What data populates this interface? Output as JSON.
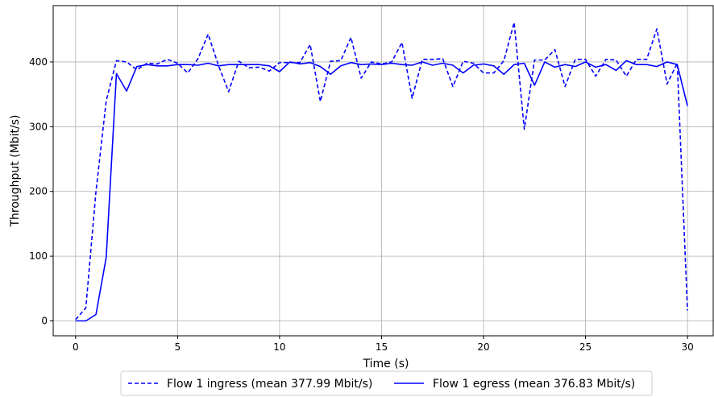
{
  "chart_data": {
    "type": "line",
    "title": "",
    "xlabel": "Time (s)",
    "ylabel": "Throughput (Mbit/s)",
    "xlim": [
      -1.1,
      31.3
    ],
    "ylim": [
      -23,
      487
    ],
    "xticks": [
      0,
      5,
      10,
      15,
      20,
      25,
      30
    ],
    "yticks": [
      0,
      100,
      200,
      300,
      400
    ],
    "grid": true,
    "legend_position": "bottom-center",
    "series": [
      {
        "name": "Flow 1 ingress (mean 377.99 Mbit/s)",
        "style": "dashed",
        "color": "#0000ff",
        "x": [
          0,
          0.5,
          1,
          1.5,
          2,
          2.5,
          3,
          3.5,
          4,
          4.5,
          5,
          5.5,
          6,
          6.5,
          7,
          7.5,
          8,
          8.5,
          9,
          9.5,
          10,
          10.5,
          11,
          11.5,
          12,
          12.5,
          13,
          13.5,
          14,
          14.5,
          15,
          15.5,
          16,
          16.5,
          17,
          17.5,
          18,
          18.5,
          19,
          19.5,
          20,
          20.5,
          21,
          21.5,
          22,
          22.5,
          23,
          23.5,
          24,
          24.5,
          25,
          25.5,
          26,
          26.5,
          27,
          27.5,
          28,
          28.5,
          29,
          29.5,
          30
        ],
        "y": [
          2,
          20,
          200,
          340,
          402,
          400,
          388,
          398,
          397,
          404,
          398,
          383,
          405,
          443,
          395,
          354,
          401,
          391,
          392,
          386,
          399,
          399,
          399,
          427,
          339,
          401,
          402,
          438,
          375,
          400,
          397,
          400,
          430,
          344,
          404,
          404,
          405,
          362,
          401,
          398,
          383,
          383,
          402,
          461,
          296,
          403,
          403,
          419,
          362,
          404,
          404,
          378,
          404,
          403,
          378,
          404,
          404,
          451,
          366,
          398,
          16
        ]
      },
      {
        "name": "Flow 1 egress (mean 376.83 Mbit/s)",
        "style": "solid",
        "color": "#0000ff",
        "x": [
          0,
          0.5,
          1,
          1.5,
          2,
          2.5,
          3,
          3.5,
          4,
          4.5,
          5,
          5.5,
          6,
          6.5,
          7,
          7.5,
          8,
          8.5,
          9,
          9.5,
          10,
          10.5,
          11,
          11.5,
          12,
          12.5,
          13,
          13.5,
          14,
          14.5,
          15,
          15.5,
          16,
          16.5,
          17,
          17.5,
          18,
          18.5,
          19,
          19.5,
          20,
          20.5,
          21,
          21.5,
          22,
          22.5,
          23,
          23.5,
          24,
          24.5,
          25,
          25.5,
          26,
          26.5,
          27,
          27.5,
          28,
          28.5,
          29,
          29.5,
          30
        ],
        "y": [
          0,
          0,
          10,
          98,
          382,
          355,
          393,
          396,
          394,
          394,
          396,
          396,
          395,
          398,
          394,
          396,
          396,
          396,
          396,
          394,
          385,
          400,
          397,
          399,
          393,
          381,
          394,
          399,
          396,
          397,
          396,
          398,
          396,
          395,
          400,
          395,
          398,
          395,
          383,
          395,
          397,
          394,
          381,
          396,
          398,
          364,
          400,
          392,
          396,
          393,
          400,
          392,
          396,
          387,
          402,
          396,
          396,
          393,
          400,
          396,
          332
        ]
      }
    ]
  }
}
